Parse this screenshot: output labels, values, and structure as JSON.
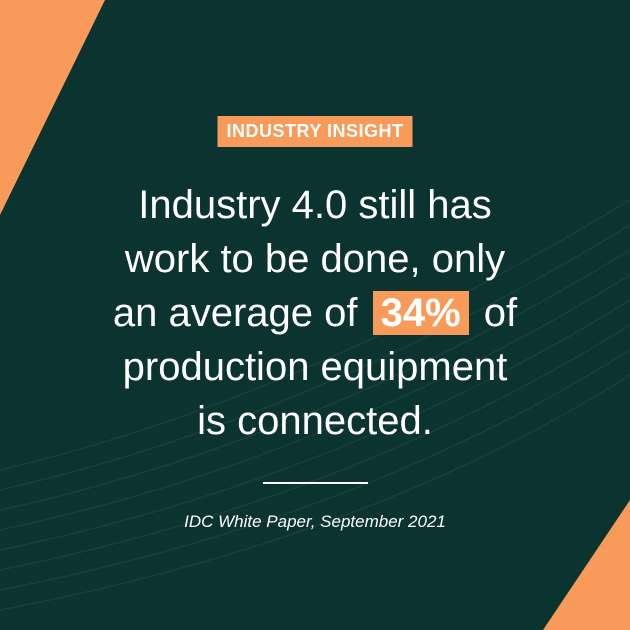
{
  "badge": "INDUSTRY INSIGHT",
  "quote": {
    "lines": [
      [
        {
          "text": "Industry 4.0 still has"
        }
      ],
      [
        {
          "text": "work to be done, only"
        }
      ],
      [
        {
          "text": "an average of"
        },
        {
          "text": "34%",
          "highlight": true
        },
        {
          "text": "of"
        }
      ],
      [
        {
          "text": "production equipment"
        }
      ],
      [
        {
          "text": "is connected."
        }
      ]
    ]
  },
  "source": "IDC White Paper, September 2021"
}
